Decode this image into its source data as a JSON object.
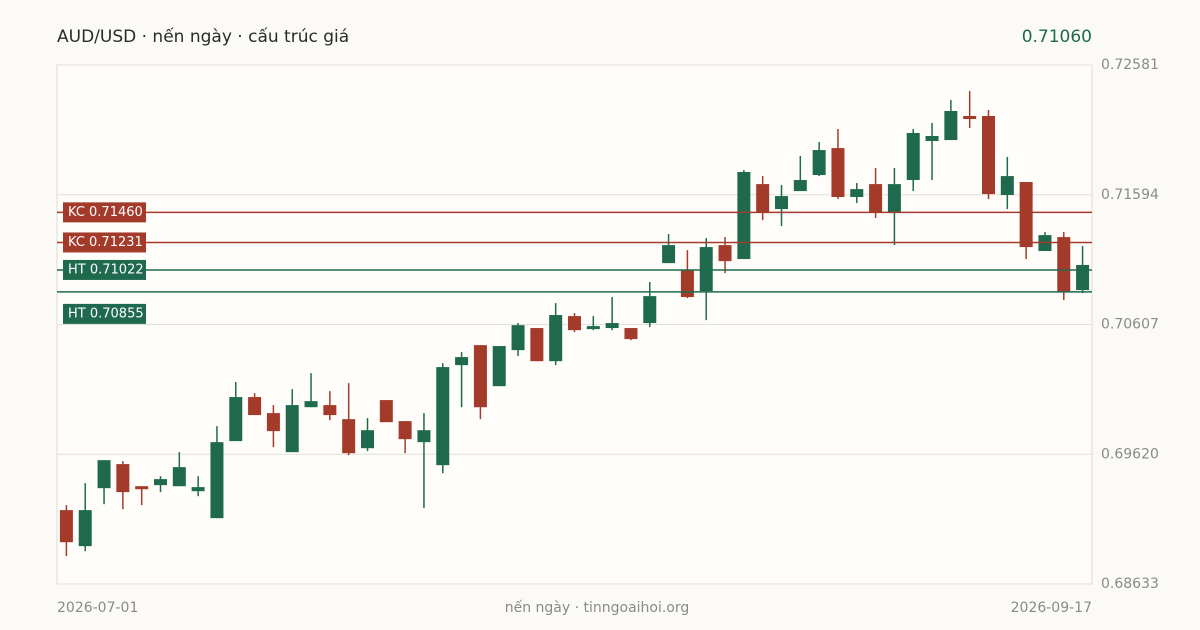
{
  "chart_data": {
    "type": "candlestick",
    "title": "AUD/USD · nến ngày · cấu trúc giá",
    "last_price": {
      "value": 0.7106,
      "label": "0.71060"
    },
    "x_start": "2026-07-01",
    "x_end": "2026-09-17",
    "footer": "nến ngày · tinngoaihoi.org",
    "up_color": "#1f6a4f",
    "down_color": "#a33a2a",
    "ylim": [
      0.68633,
      0.72581
    ],
    "yticks": [
      0.68633,
      {
        "value": 0.6962,
        "label": "0.69620"
      },
      0.70607,
      0.71594,
      0.72581
    ],
    "grid": true,
    "levels": [
      {
        "value": 0.7146,
        "label": "KC 0.71460",
        "color": "#a33a2a"
      },
      {
        "value": 0.71231,
        "label": "KC 0.71231",
        "color": "#a33a2a"
      },
      {
        "value": 0.71022,
        "label": "HT 0.71022",
        "color": "#1f6a4f"
      },
      {
        "value": 0.70855,
        "label": "HT 0.70855",
        "color": "#1f6a4f"
      }
    ],
    "open": [
      0.69195,
      0.68921,
      0.69362,
      0.69545,
      0.69377,
      0.69385,
      0.69377,
      0.69339,
      0.69134,
      0.6972,
      0.70055,
      0.69933,
      0.69636,
      0.69978,
      0.69994,
      0.69887,
      0.69666,
      0.70032,
      0.69872,
      0.69712,
      0.69537,
      0.70298,
      0.7045,
      0.70138,
      0.70412,
      0.7058,
      0.70328,
      0.70671,
      0.70572,
      0.7058,
      0.7058,
      0.70618,
      0.71074,
      0.71021,
      0.70861,
      0.71211,
      0.71105,
      0.71675,
      0.71485,
      0.71622,
      0.71744,
      0.71949,
      0.71577,
      0.71675,
      0.71455,
      0.71706,
      0.72003,
      0.7201,
      0.72193,
      0.72193,
      0.71592,
      0.71691,
      0.71166,
      0.71272,
      0.70869
    ],
    "high": [
      0.69233,
      0.694,
      0.69575,
      0.69567,
      0.69377,
      0.69453,
      0.69636,
      0.69453,
      0.69834,
      0.70169,
      0.70085,
      0.69994,
      0.70115,
      0.70237,
      0.701,
      0.70161,
      0.69895,
      0.70032,
      0.69872,
      0.69933,
      0.70313,
      0.70397,
      0.7045,
      0.70443,
      0.70618,
      0.7058,
      0.7077,
      0.70694,
      0.70671,
      0.70816,
      0.7058,
      0.7093,
      0.71295,
      0.71173,
      0.71264,
      0.71272,
      0.71782,
      0.71736,
      0.71668,
      0.71889,
      0.71995,
      0.72094,
      0.71683,
      0.71797,
      0.71797,
      0.72094,
      0.7214,
      0.72315,
      0.72383,
      0.72239,
      0.71881,
      0.71691,
      0.7131,
      0.7131,
      0.71204
    ],
    "low": [
      0.68845,
      0.68883,
      0.6924,
      0.69202,
      0.69233,
      0.69332,
      0.69377,
      0.69301,
      0.69134,
      0.6972,
      0.69918,
      0.69674,
      0.69636,
      0.69978,
      0.69879,
      0.69613,
      0.69644,
      0.69864,
      0.69628,
      0.6921,
      0.69476,
      0.69978,
      0.69887,
      0.70138,
      0.70367,
      0.70328,
      0.70298,
      0.70549,
      0.70564,
      0.70564,
      0.70488,
      0.70587,
      0.71074,
      0.70808,
      0.7064,
      0.70998,
      0.71105,
      0.71401,
      0.71356,
      0.71622,
      0.71736,
      0.71561,
      0.71531,
      0.71417,
      0.71211,
      0.71622,
      0.71706,
      0.7201,
      0.72102,
      0.71561,
      0.71485,
      0.71105,
      0.71166,
      0.70793,
      0.70846
    ],
    "close": [
      0.68951,
      0.69195,
      0.69575,
      0.69332,
      0.69354,
      0.69431,
      0.69522,
      0.6937,
      0.69712,
      0.70055,
      0.69918,
      0.69796,
      0.69994,
      0.70024,
      0.69918,
      0.69628,
      0.69803,
      0.69864,
      0.69735,
      0.69803,
      0.70283,
      0.70359,
      0.69978,
      0.70443,
      0.70602,
      0.70328,
      0.70679,
      0.70564,
      0.70595,
      0.70618,
      0.70496,
      0.70823,
      0.71211,
      0.70816,
      0.71196,
      0.71089,
      0.71767,
      0.71462,
      0.71584,
      0.71706,
      0.71934,
      0.71577,
      0.71637,
      0.71462,
      0.71675,
      0.72064,
      0.72041,
      0.72231,
      0.7217,
      0.71599,
      0.71736,
      0.71196,
      0.71287,
      0.70854,
      0.7106
    ]
  }
}
